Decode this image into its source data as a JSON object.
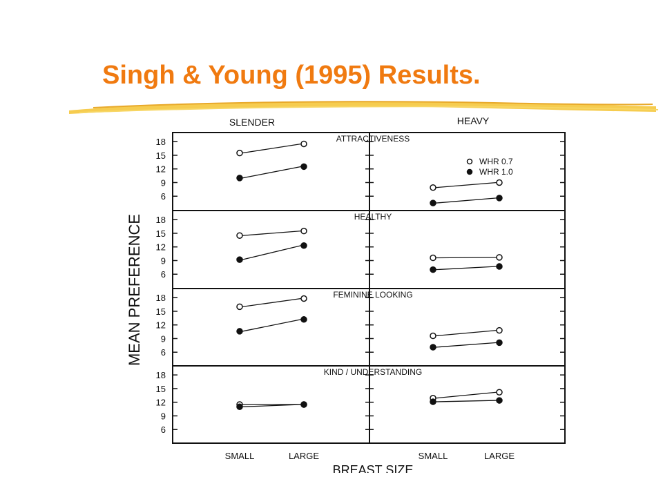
{
  "slide": {
    "title": "Singh & Young (1995) Results.",
    "accent_color": "#f07a10",
    "stroke_color": "#f5c63c"
  },
  "chart_data": {
    "type": "line",
    "column_headers": [
      "SLENDER",
      "HEAVY"
    ],
    "ylabel": "MEAN PREFERENCE",
    "xlabel": "BREAST SIZE",
    "categories": [
      "SMALL",
      "LARGE"
    ],
    "yticks": [
      18,
      15,
      12,
      9,
      6
    ],
    "ylim": [
      3,
      20
    ],
    "legend": {
      "placement": "top-right",
      "entries": [
        {
          "label": "WHR 0.7",
          "marker": "open-circle"
        },
        {
          "label": "WHR 1.0",
          "marker": "filled-circle"
        }
      ]
    },
    "panels": [
      {
        "title": "ATTRACTIVENESS",
        "slender": {
          "series": [
            {
              "name": "WHR 0.7",
              "values": [
                15.5,
                17.5
              ]
            },
            {
              "name": "WHR 1.0",
              "values": [
                10.0,
                12.5
              ]
            }
          ]
        },
        "heavy": {
          "series": [
            {
              "name": "WHR 0.7",
              "values": [
                7.9,
                9.0
              ]
            },
            {
              "name": "WHR 1.0",
              "values": [
                4.5,
                5.6
              ]
            }
          ]
        }
      },
      {
        "title": "HEALTHY",
        "slender": {
          "series": [
            {
              "name": "WHR 0.7",
              "values": [
                14.5,
                15.5
              ]
            },
            {
              "name": "WHR 1.0",
              "values": [
                9.2,
                12.3
              ]
            }
          ]
        },
        "heavy": {
          "series": [
            {
              "name": "WHR 0.7",
              "values": [
                9.6,
                9.7
              ]
            },
            {
              "name": "WHR 1.0",
              "values": [
                7.0,
                7.7
              ]
            }
          ]
        }
      },
      {
        "title": "FEMININE LOOKING",
        "slender": {
          "series": [
            {
              "name": "WHR 0.7",
              "values": [
                16.0,
                17.8
              ]
            },
            {
              "name": "WHR 1.0",
              "values": [
                10.6,
                13.2
              ]
            }
          ]
        },
        "heavy": {
          "series": [
            {
              "name": "WHR 0.7",
              "values": [
                9.6,
                10.8
              ]
            },
            {
              "name": "WHR 1.0",
              "values": [
                7.1,
                8.1
              ]
            }
          ]
        }
      },
      {
        "title": "KIND / UNDERSTANDING",
        "slender": {
          "series": [
            {
              "name": "WHR 0.7",
              "values": [
                11.5,
                11.5
              ]
            },
            {
              "name": "WHR 1.0",
              "values": [
                11.0,
                11.5
              ]
            }
          ]
        },
        "heavy": {
          "series": [
            {
              "name": "WHR 0.7",
              "values": [
                12.9,
                14.2
              ]
            },
            {
              "name": "WHR 1.0",
              "values": [
                12.1,
                12.4
              ]
            }
          ]
        }
      }
    ]
  }
}
